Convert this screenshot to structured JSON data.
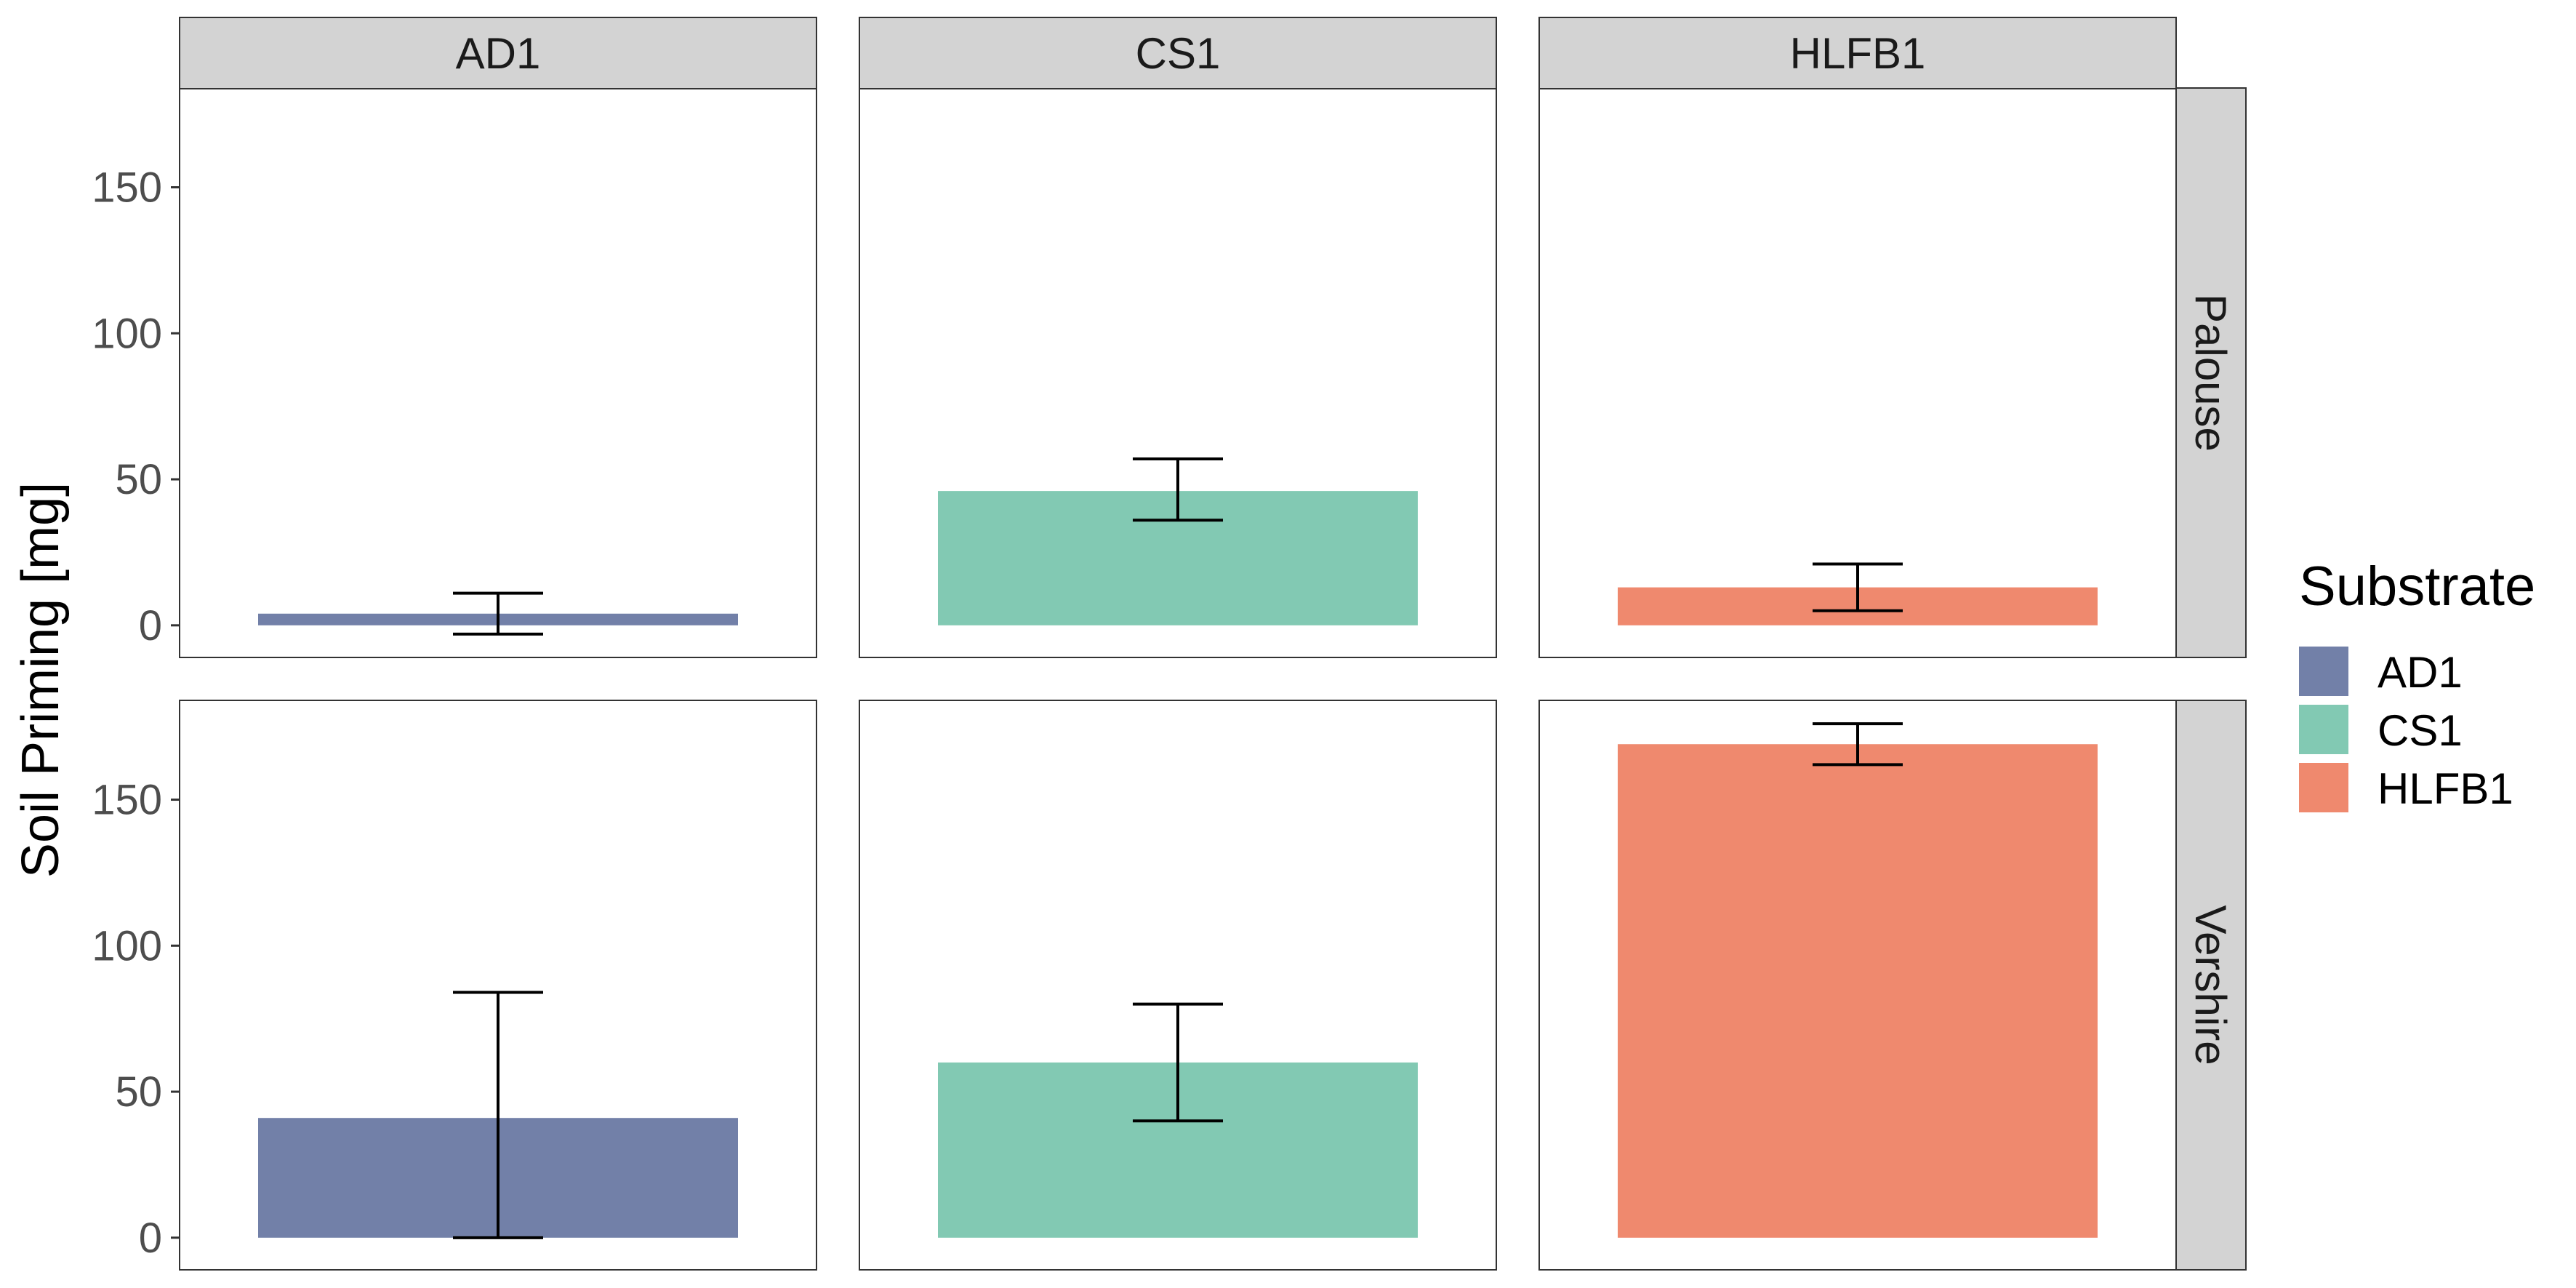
{
  "chart_data": {
    "type": "bar",
    "facet_columns": [
      "AD1",
      "CS1",
      "HLFB1"
    ],
    "facet_rows": [
      "Palouse",
      "Vershire"
    ],
    "ylabel": "Soil Priming [mg]",
    "xlabel": "",
    "ylim": [
      -11,
      184
    ],
    "yticks": [
      0,
      50,
      100,
      150
    ],
    "grid": false,
    "legend": {
      "title": "Substrate",
      "position": "right",
      "entries": [
        {
          "label": "AD1",
          "color": "#7280A8"
        },
        {
          "label": "CS1",
          "color": "#82C9B3"
        },
        {
          "label": "HLFB1",
          "color": "#EF896E"
        }
      ]
    },
    "panels": [
      {
        "row": "Palouse",
        "col": "AD1",
        "substrate": "AD1",
        "value": 4,
        "error_low": -3,
        "error_high": 11
      },
      {
        "row": "Palouse",
        "col": "CS1",
        "substrate": "CS1",
        "value": 46,
        "error_low": 36,
        "error_high": 57
      },
      {
        "row": "Palouse",
        "col": "HLFB1",
        "substrate": "HLFB1",
        "value": 13,
        "error_low": 5,
        "error_high": 21
      },
      {
        "row": "Vershire",
        "col": "AD1",
        "substrate": "AD1",
        "value": 41,
        "error_low": 0,
        "error_high": 84
      },
      {
        "row": "Vershire",
        "col": "CS1",
        "substrate": "CS1",
        "value": 60,
        "error_low": 40,
        "error_high": 80
      },
      {
        "row": "Vershire",
        "col": "HLFB1",
        "substrate": "HLFB1",
        "value": 169,
        "error_low": 162,
        "error_high": 176
      }
    ]
  }
}
